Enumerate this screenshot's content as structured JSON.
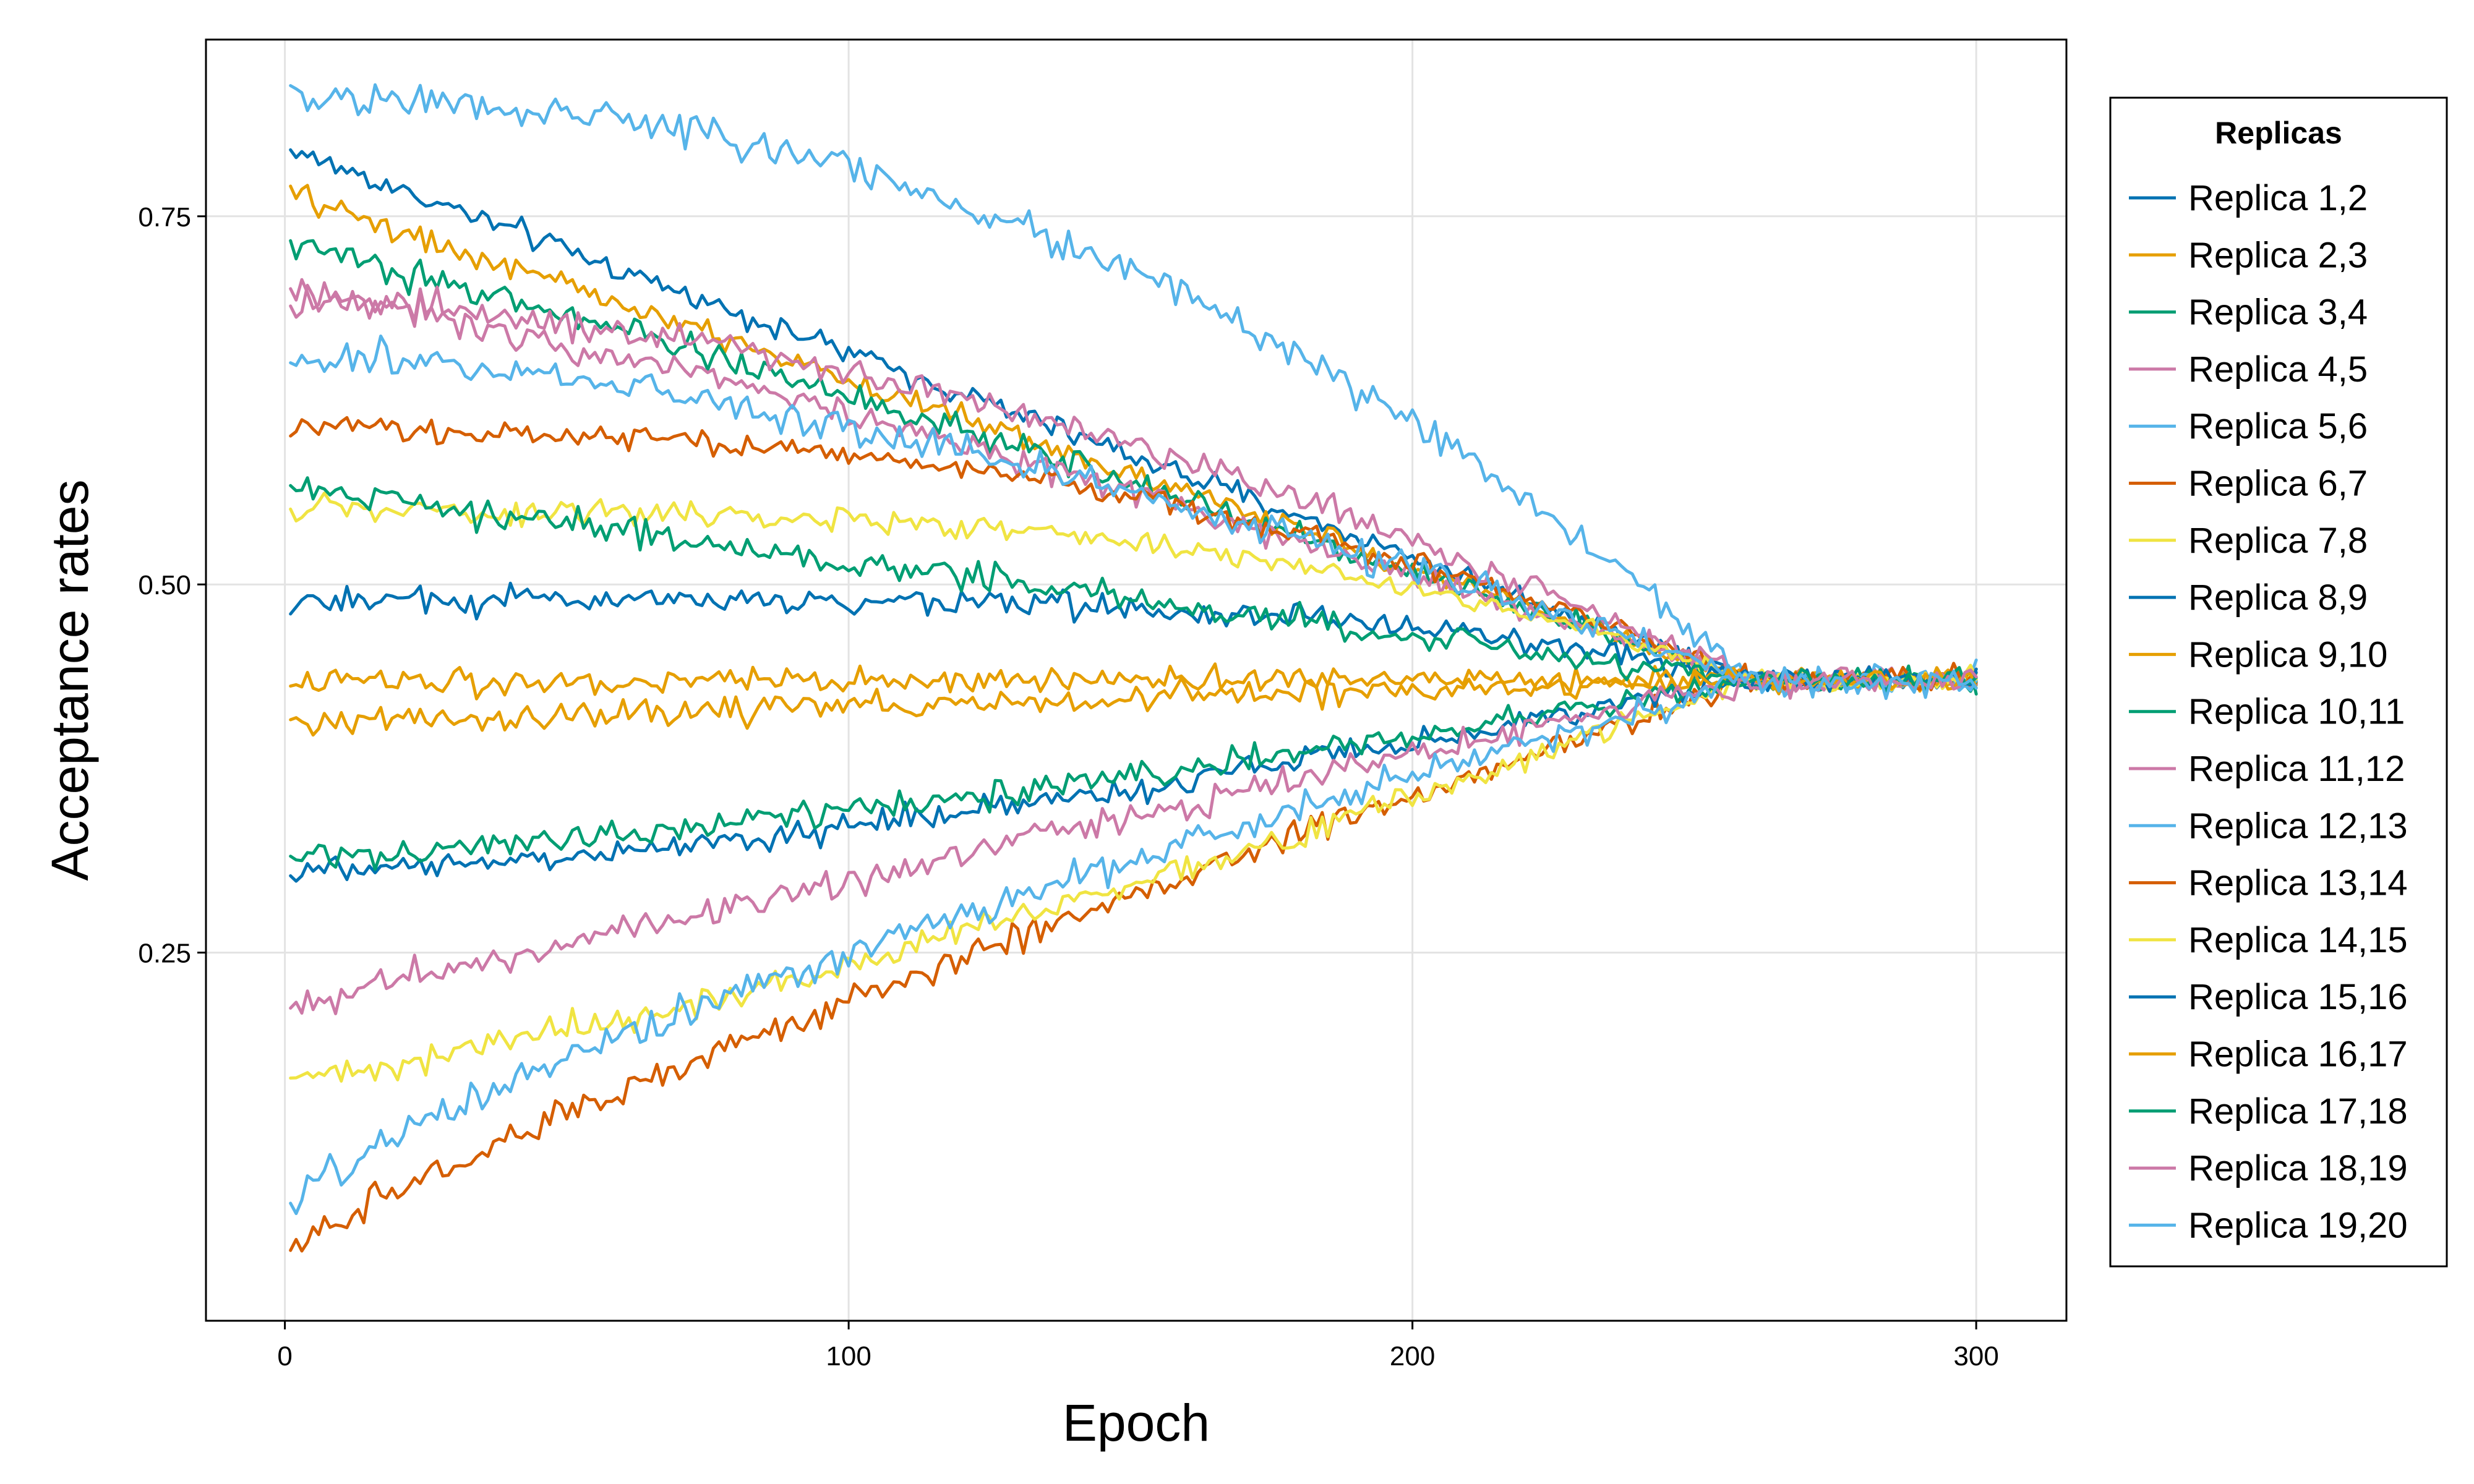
{
  "chart_data": {
    "type": "line",
    "title": "",
    "xlabel": "Epoch",
    "ylabel": "Acceptance rates",
    "xlim": [
      -14,
      316
    ],
    "ylim": [
      0.0,
      0.87
    ],
    "xticks": [
      0,
      100,
      200,
      300
    ],
    "xtick_labels": [
      "0",
      "100",
      "200",
      "300"
    ],
    "yticks": [
      0.25,
      0.5,
      0.75
    ],
    "ytick_labels": [
      "0.25",
      "0.50",
      "0.75"
    ],
    "grid": true,
    "legend": {
      "title": "Replicas",
      "placement": "outside-right"
    },
    "final_value": 0.435,
    "converge_epoch": 260,
    "series": [
      {
        "name": "Replica 1,2",
        "color": "#0072B2",
        "start": 0.795,
        "shape": 1.0,
        "noise": 0.006
      },
      {
        "name": "Replica 2,3",
        "color": "#E69F00",
        "start": 0.765,
        "shape": 1.0,
        "noise": 0.006
      },
      {
        "name": "Replica 3,4",
        "color": "#009E73",
        "start": 0.73,
        "shape": 1.1,
        "noise": 0.007
      },
      {
        "name": "Replica 4,5",
        "color": "#CC79A7",
        "start": 0.7,
        "shape": 1.2,
        "noise": 0.008
      },
      {
        "name": "Replica 5,6",
        "color": "#56B4E9",
        "start": 0.83,
        "shape": 2.2,
        "noise": 0.01
      },
      {
        "name": "Replica 6,7",
        "color": "#D55E00",
        "start": 0.605,
        "shape": 2.4,
        "noise": 0.006
      },
      {
        "name": "Replica 7,8",
        "color": "#F0E442",
        "start": 0.55,
        "shape": 3.0,
        "noise": 0.006
      },
      {
        "name": "Replica 8,9",
        "color": "#0072B2",
        "start": 0.49,
        "shape": 4.0,
        "noise": 0.007
      },
      {
        "name": "Replica 9,10",
        "color": "#E69F00",
        "start": 0.435,
        "shape": 1.0,
        "noise": 0.007
      },
      {
        "name": "Replica 10,11",
        "color": "#009E73",
        "start": 0.565,
        "shape": 1.0,
        "noise": 0.008
      },
      {
        "name": "Replica 11,12",
        "color": "#CC79A7",
        "start": 0.69,
        "shape": 1.8,
        "noise": 0.009
      },
      {
        "name": "Replica 12,13",
        "color": "#56B4E9",
        "start": 0.655,
        "shape": 1.6,
        "noise": 0.01
      },
      {
        "name": "Replica 13,14",
        "color": "#D55E00",
        "start": 0.045,
        "shape": 0.85,
        "noise": 0.008
      },
      {
        "name": "Replica 14,15",
        "color": "#F0E442",
        "start": 0.165,
        "shape": 1.3,
        "noise": 0.008
      },
      {
        "name": "Replica 15,16",
        "color": "#0072B2",
        "start": 0.305,
        "shape": 1.5,
        "noise": 0.007
      },
      {
        "name": "Replica 16,17",
        "color": "#E69F00",
        "start": 0.405,
        "shape": 1.0,
        "noise": 0.007
      },
      {
        "name": "Replica 17,18",
        "color": "#009E73",
        "start": 0.315,
        "shape": 1.4,
        "noise": 0.008
      },
      {
        "name": "Replica 18,19",
        "color": "#CC79A7",
        "start": 0.215,
        "shape": 1.0,
        "noise": 0.009
      },
      {
        "name": "Replica 19,20",
        "color": "#56B4E9",
        "start": 0.075,
        "shape": 0.75,
        "noise": 0.01
      }
    ]
  }
}
